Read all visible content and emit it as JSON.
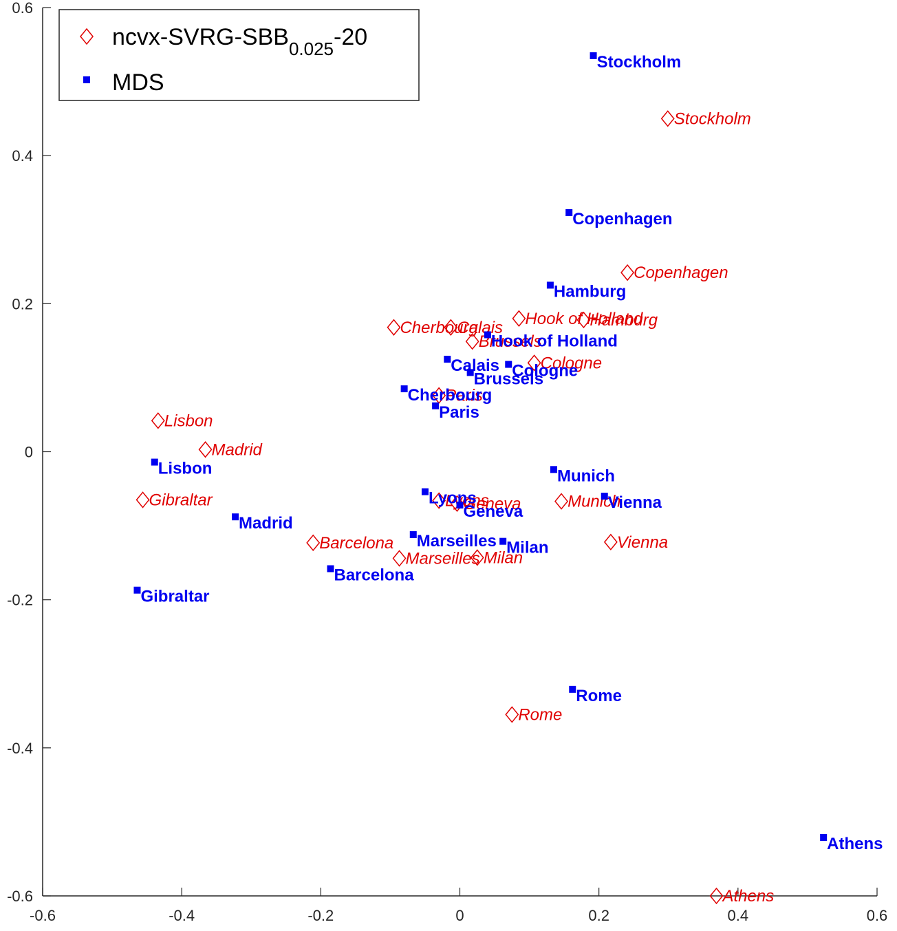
{
  "chart_data": {
    "type": "scatter",
    "title": "",
    "xlabel": "",
    "ylabel": "",
    "xlim": [
      -0.6,
      0.6
    ],
    "ylim": [
      -0.6,
      0.6
    ],
    "xticks": [
      "-0.6",
      "-0.4",
      "-0.2",
      "0",
      "0.2",
      "0.4",
      "0.6"
    ],
    "yticks": [
      "-0.6",
      "-0.4",
      "-0.2",
      "0",
      "0.2",
      "0.4",
      "0.6"
    ],
    "grid": false,
    "legend": {
      "position": "top-left",
      "entries": [
        {
          "name": "ncvx-SVRG-SBB",
          "subscript": "0.025",
          "suffix": "-20",
          "marker": "diamond",
          "color": "#e00000"
        },
        {
          "name": "MDS",
          "marker": "square",
          "color": "#0000f0"
        }
      ]
    },
    "series": [
      {
        "name": "ncvx-SVRG-SBB_0.025-20",
        "marker": "diamond",
        "color": "#e00000",
        "points": [
          {
            "label": "Stockholm",
            "x": 0.299,
            "y": 0.45
          },
          {
            "label": "Copenhagen",
            "x": 0.241,
            "y": 0.242
          },
          {
            "label": "Hook of Holland",
            "x": 0.085,
            "y": 0.18
          },
          {
            "label": "Hamburg",
            "x": 0.178,
            "y": 0.178
          },
          {
            "label": "Cherbourg",
            "x": -0.095,
            "y": 0.168
          },
          {
            "label": "Calais",
            "x": -0.013,
            "y": 0.168
          },
          {
            "label": "Brussels",
            "x": 0.018,
            "y": 0.149
          },
          {
            "label": "Cologne",
            "x": 0.107,
            "y": 0.12
          },
          {
            "label": "Paris",
            "x": -0.03,
            "y": 0.076
          },
          {
            "label": "Lisbon",
            "x": -0.434,
            "y": 0.042
          },
          {
            "label": "Madrid",
            "x": -0.366,
            "y": 0.003
          },
          {
            "label": "Gibraltar",
            "x": -0.456,
            "y": -0.065
          },
          {
            "label": "Lyons",
            "x": -0.03,
            "y": -0.066
          },
          {
            "label": "Geneva",
            "x": -0.004,
            "y": -0.07
          },
          {
            "label": "Munich",
            "x": 0.146,
            "y": -0.067
          },
          {
            "label": "Vienna",
            "x": 0.217,
            "y": -0.122
          },
          {
            "label": "Barcelona",
            "x": -0.211,
            "y": -0.123
          },
          {
            "label": "Marseilles",
            "x": -0.087,
            "y": -0.144
          },
          {
            "label": "Milan",
            "x": 0.025,
            "y": -0.143
          },
          {
            "label": "Rome",
            "x": 0.075,
            "y": -0.355
          },
          {
            "label": "Athens",
            "x": 0.369,
            "y": -0.6
          }
        ]
      },
      {
        "name": "MDS",
        "marker": "square",
        "color": "#0000f0",
        "points": [
          {
            "label": "Stockholm",
            "x": 0.192,
            "y": 0.535
          },
          {
            "label": "Copenhagen",
            "x": 0.157,
            "y": 0.323
          },
          {
            "label": "Hamburg",
            "x": 0.13,
            "y": 0.225
          },
          {
            "label": "Hook of Holland",
            "x": 0.04,
            "y": 0.158
          },
          {
            "label": "Calais",
            "x": -0.018,
            "y": 0.125
          },
          {
            "label": "Cologne",
            "x": 0.07,
            "y": 0.118
          },
          {
            "label": "Brussels",
            "x": 0.015,
            "y": 0.107
          },
          {
            "label": "Cherbourg",
            "x": -0.08,
            "y": 0.085
          },
          {
            "label": "Paris",
            "x": -0.035,
            "y": 0.062
          },
          {
            "label": "Lisbon",
            "x": -0.439,
            "y": -0.014
          },
          {
            "label": "Munich",
            "x": 0.135,
            "y": -0.024
          },
          {
            "label": "Lyons",
            "x": -0.05,
            "y": -0.054
          },
          {
            "label": "Vienna",
            "x": 0.208,
            "y": -0.06
          },
          {
            "label": "Geneva",
            "x": 0.0,
            "y": -0.072
          },
          {
            "label": "Madrid",
            "x": -0.323,
            "y": -0.088
          },
          {
            "label": "Marseilles",
            "x": -0.067,
            "y": -0.112
          },
          {
            "label": "Milan",
            "x": 0.062,
            "y": -0.121
          },
          {
            "label": "Barcelona",
            "x": -0.186,
            "y": -0.158
          },
          {
            "label": "Gibraltar",
            "x": -0.464,
            "y": -0.187
          },
          {
            "label": "Rome",
            "x": 0.162,
            "y": -0.321
          },
          {
            "label": "Athens",
            "x": 0.523,
            "y": -0.521
          }
        ]
      }
    ]
  }
}
